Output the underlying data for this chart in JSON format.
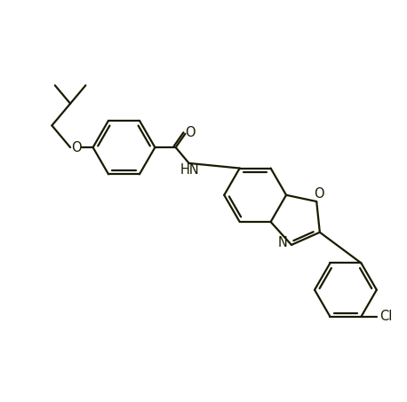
{
  "background_color": "#ffffff",
  "line_color": "#1a1a00",
  "text_color": "#1a1a00",
  "figsize": [
    4.58,
    4.53
  ],
  "dpi": 100,
  "bond_width": 1.6,
  "font_size": 10.5,
  "xlim": [
    0,
    10
  ],
  "ylim": [
    0,
    10
  ]
}
